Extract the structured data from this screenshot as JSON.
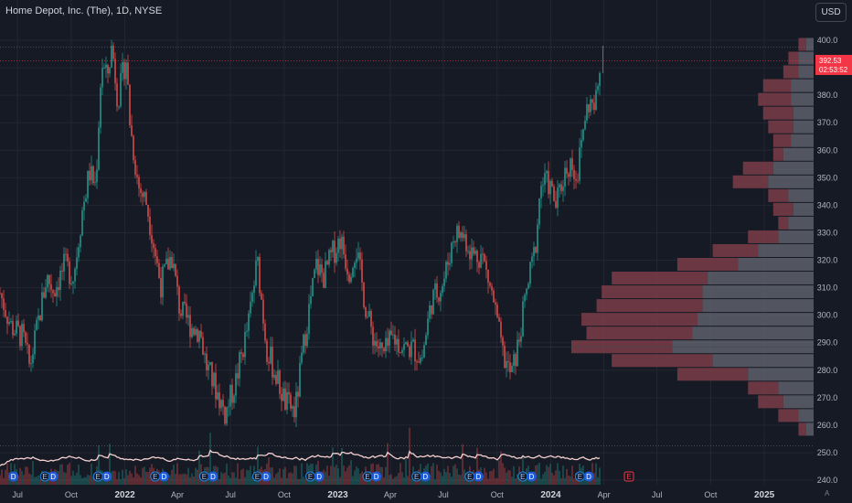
{
  "header": {
    "title": "Home Depot, Inc. (The), 1D, NYSE",
    "currency": "USD"
  },
  "price_badge": {
    "price": "392.53",
    "countdown": "02:53:52"
  },
  "corner_label": "A",
  "colors": {
    "background": "#161a25",
    "up": "#26a69a",
    "down": "#ef5350",
    "volume_profile_gray": "#5d606b",
    "volume_profile_red": "#7a3d48",
    "volume_ma": "#f5d0d0",
    "price_line": "#f23645"
  },
  "chart_data": {
    "type": "candlestick",
    "title": "Home Depot, Inc. (The), 1D, NYSE",
    "x_labels": [
      "Jul",
      "Oct",
      "2022",
      "Apr",
      "Jul",
      "Oct",
      "2023",
      "Apr",
      "Jul",
      "Oct",
      "2024",
      "Apr",
      "Jul",
      "Oct",
      "2025"
    ],
    "year_labels": [
      "2022",
      "2023",
      "2024",
      "2025"
    ],
    "y_ticks": [
      240,
      250,
      260,
      270,
      280,
      290,
      300,
      310,
      320,
      330,
      340,
      350,
      360,
      370,
      380,
      390,
      400
    ],
    "ylim": [
      237,
      403
    ],
    "last_price": 392.53,
    "grid": true,
    "price_path": [
      {
        "d": "2021-06-01",
        "v": 308
      },
      {
        "d": "2021-06-20",
        "v": 296
      },
      {
        "d": "2021-07-10",
        "v": 292
      },
      {
        "d": "2021-07-22",
        "v": 281
      },
      {
        "d": "2021-08-05",
        "v": 297
      },
      {
        "d": "2021-08-20",
        "v": 314
      },
      {
        "d": "2021-09-01",
        "v": 309
      },
      {
        "d": "2021-09-20",
        "v": 318
      },
      {
        "d": "2021-10-05",
        "v": 314
      },
      {
        "d": "2021-10-20",
        "v": 338
      },
      {
        "d": "2021-11-01",
        "v": 352
      },
      {
        "d": "2021-11-12",
        "v": 347
      },
      {
        "d": "2021-11-22",
        "v": 392
      },
      {
        "d": "2021-12-01",
        "v": 386
      },
      {
        "d": "2021-12-10",
        "v": 398
      },
      {
        "d": "2021-12-20",
        "v": 378
      },
      {
        "d": "2022-01-03",
        "v": 394
      },
      {
        "d": "2022-01-10",
        "v": 369
      },
      {
        "d": "2022-01-24",
        "v": 347
      },
      {
        "d": "2022-02-07",
        "v": 341
      },
      {
        "d": "2022-02-18",
        "v": 328
      },
      {
        "d": "2022-03-03",
        "v": 311
      },
      {
        "d": "2022-03-22",
        "v": 322
      },
      {
        "d": "2022-04-05",
        "v": 302
      },
      {
        "d": "2022-04-25",
        "v": 296
      },
      {
        "d": "2022-05-10",
        "v": 294
      },
      {
        "d": "2022-05-20",
        "v": 282
      },
      {
        "d": "2022-06-10",
        "v": 271
      },
      {
        "d": "2022-06-22",
        "v": 264
      },
      {
        "d": "2022-07-10",
        "v": 276
      },
      {
        "d": "2022-08-01",
        "v": 297
      },
      {
        "d": "2022-08-16",
        "v": 320
      },
      {
        "d": "2022-09-01",
        "v": 288
      },
      {
        "d": "2022-09-20",
        "v": 276
      },
      {
        "d": "2022-10-03",
        "v": 268
      },
      {
        "d": "2022-10-20",
        "v": 265
      },
      {
        "d": "2022-11-05",
        "v": 292
      },
      {
        "d": "2022-11-25",
        "v": 318
      },
      {
        "d": "2022-12-08",
        "v": 314
      },
      {
        "d": "2022-12-20",
        "v": 321
      },
      {
        "d": "2023-01-05",
        "v": 328
      },
      {
        "d": "2023-01-20",
        "v": 316
      },
      {
        "d": "2023-02-01",
        "v": 325
      },
      {
        "d": "2023-02-20",
        "v": 300
      },
      {
        "d": "2023-03-05",
        "v": 291
      },
      {
        "d": "2023-03-20",
        "v": 285
      },
      {
        "d": "2023-04-05",
        "v": 292
      },
      {
        "d": "2023-04-25",
        "v": 288
      },
      {
        "d": "2023-05-10",
        "v": 288
      },
      {
        "d": "2023-05-25",
        "v": 284
      },
      {
        "d": "2023-06-10",
        "v": 305
      },
      {
        "d": "2023-07-01",
        "v": 312
      },
      {
        "d": "2023-07-20",
        "v": 330
      },
      {
        "d": "2023-08-05",
        "v": 329
      },
      {
        "d": "2023-08-20",
        "v": 322
      },
      {
        "d": "2023-09-05",
        "v": 322
      },
      {
        "d": "2023-09-25",
        "v": 305
      },
      {
        "d": "2023-10-10",
        "v": 286
      },
      {
        "d": "2023-10-25",
        "v": 278
      },
      {
        "d": "2023-11-05",
        "v": 288
      },
      {
        "d": "2023-11-20",
        "v": 308
      },
      {
        "d": "2023-12-05",
        "v": 324
      },
      {
        "d": "2023-12-15",
        "v": 348
      },
      {
        "d": "2023-12-28",
        "v": 348
      },
      {
        "d": "2024-01-10",
        "v": 340
      },
      {
        "d": "2024-01-25",
        "v": 352
      },
      {
        "d": "2024-02-05",
        "v": 356
      },
      {
        "d": "2024-02-15",
        "v": 350
      },
      {
        "d": "2024-02-28",
        "v": 372
      },
      {
        "d": "2024-03-08",
        "v": 378
      },
      {
        "d": "2024-03-15",
        "v": 374
      },
      {
        "d": "2024-03-22",
        "v": 383
      },
      {
        "d": "2024-03-27",
        "v": 392.53
      }
    ],
    "volume_profile": [
      {
        "price": 398.5,
        "total": 3,
        "up": 1.5
      },
      {
        "price": 393.5,
        "total": 5,
        "up": 3
      },
      {
        "price": 388.5,
        "total": 6,
        "up": 3
      },
      {
        "price": 383.5,
        "total": 10,
        "up": 4.5
      },
      {
        "price": 378.5,
        "total": 11,
        "up": 4.5
      },
      {
        "price": 373.5,
        "total": 10,
        "up": 4
      },
      {
        "price": 368.5,
        "total": 9,
        "up": 4
      },
      {
        "price": 363.5,
        "total": 8,
        "up": 4.5
      },
      {
        "price": 358.5,
        "total": 8,
        "up": 6
      },
      {
        "price": 353.5,
        "total": 14,
        "up": 8
      },
      {
        "price": 348.5,
        "total": 16,
        "up": 9
      },
      {
        "price": 343.5,
        "total": 9,
        "up": 5
      },
      {
        "price": 338.5,
        "total": 8,
        "up": 4
      },
      {
        "price": 333.5,
        "total": 7,
        "up": 5
      },
      {
        "price": 328.5,
        "total": 13,
        "up": 7
      },
      {
        "price": 323.5,
        "total": 20,
        "up": 11
      },
      {
        "price": 318.5,
        "total": 27,
        "up": 15
      },
      {
        "price": 313.5,
        "total": 40,
        "up": 21
      },
      {
        "price": 308.5,
        "total": 42,
        "up": 22
      },
      {
        "price": 303.5,
        "total": 43,
        "up": 22
      },
      {
        "price": 298.5,
        "total": 46,
        "up": 23
      },
      {
        "price": 293.5,
        "total": 45,
        "up": 24
      },
      {
        "price": 288.5,
        "total": 48,
        "up": 28
      },
      {
        "price": 283.5,
        "total": 40,
        "up": 20
      },
      {
        "price": 278.5,
        "total": 27,
        "up": 13
      },
      {
        "price": 273.5,
        "total": 13,
        "up": 7
      },
      {
        "price": 268.5,
        "total": 11,
        "up": 6
      },
      {
        "price": 263.5,
        "total": 7,
        "up": 3
      },
      {
        "price": 258.5,
        "total": 3,
        "up": 1.5
      }
    ],
    "events": [
      {
        "d": "2021-05-18",
        "label": "E",
        "type": "earnings"
      },
      {
        "d": "2021-06-24",
        "label": "D",
        "type": "dividend"
      },
      {
        "d": "2021-08-17",
        "label": "E",
        "type": "earnings"
      },
      {
        "d": "2021-08-31",
        "label": "D",
        "type": "dividend"
      },
      {
        "d": "2021-11-16",
        "label": "E",
        "type": "earnings"
      },
      {
        "d": "2021-12-01",
        "label": "D",
        "type": "dividend"
      },
      {
        "d": "2022-02-22",
        "label": "E",
        "type": "earnings"
      },
      {
        "d": "2022-03-09",
        "label": "D",
        "type": "dividend"
      },
      {
        "d": "2022-05-17",
        "label": "E",
        "type": "earnings"
      },
      {
        "d": "2022-06-01",
        "label": "D",
        "type": "dividend"
      },
      {
        "d": "2022-08-16",
        "label": "E",
        "type": "earnings"
      },
      {
        "d": "2022-08-31",
        "label": "D",
        "type": "dividend"
      },
      {
        "d": "2022-11-15",
        "label": "E",
        "type": "earnings"
      },
      {
        "d": "2022-11-30",
        "label": "D",
        "type": "dividend"
      },
      {
        "d": "2023-02-21",
        "label": "E",
        "type": "earnings"
      },
      {
        "d": "2023-03-08",
        "label": "D",
        "type": "dividend"
      },
      {
        "d": "2023-05-16",
        "label": "E",
        "type": "earnings"
      },
      {
        "d": "2023-05-31",
        "label": "D",
        "type": "dividend"
      },
      {
        "d": "2023-08-15",
        "label": "E",
        "type": "earnings"
      },
      {
        "d": "2023-08-30",
        "label": "D",
        "type": "dividend"
      },
      {
        "d": "2023-11-14",
        "label": "E",
        "type": "earnings"
      },
      {
        "d": "2023-11-29",
        "label": "D",
        "type": "dividend"
      },
      {
        "d": "2024-02-20",
        "label": "E",
        "type": "earnings"
      },
      {
        "d": "2024-03-06",
        "label": "D",
        "type": "dividend"
      },
      {
        "d": "2024-05-14",
        "label": "E",
        "type": "earnings-upcoming"
      }
    ]
  }
}
